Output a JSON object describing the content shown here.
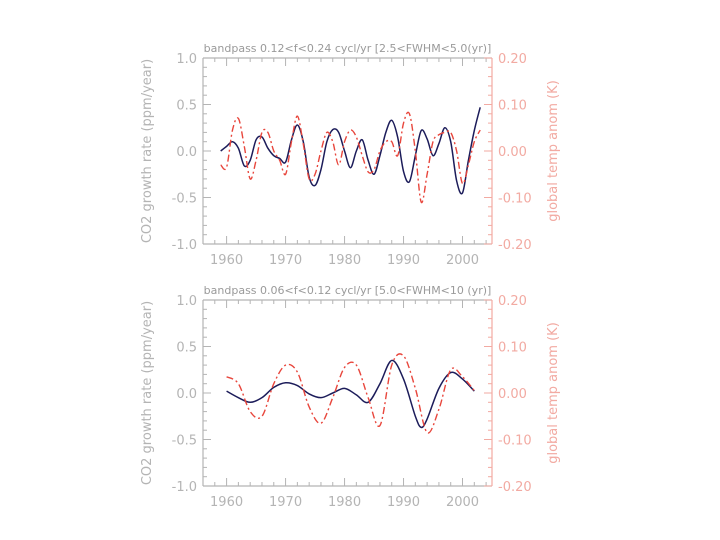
{
  "colors": {
    "axis": "#b4b4b4",
    "co2": "#1c1c5a",
    "temp": "#e8463c",
    "temp_axis": "#f2aaa2"
  },
  "chart_data": [
    {
      "type": "line",
      "title": "bandpass  0.12<f<0.24  cycl/yr   [2.5<FWHM<5.0(yr)]",
      "xlabel": "",
      "ylabel": "CO2  growth  rate  (ppm/year)",
      "y2label": "global  temp  anom  (K)",
      "xlim": [
        1956,
        2005
      ],
      "ylim": [
        -1.0,
        1.0
      ],
      "y2lim": [
        -0.2,
        0.2
      ],
      "x_ticks": [
        "1960",
        "1970",
        "1980",
        "1990",
        "2000"
      ],
      "y_ticks": [
        "1.0",
        "0.5",
        "0.0",
        "-0.5",
        "-1.0"
      ],
      "y2_ticks": [
        "0.20",
        "0.10",
        "0.00",
        "-0.10",
        "-0.20"
      ],
      "grid": false,
      "series": [
        {
          "axis": "left",
          "style": "solid",
          "x": [
            1959,
            1960,
            1961,
            1962,
            1963,
            1964,
            1965,
            1966,
            1967,
            1968,
            1969,
            1970,
            1971,
            1972,
            1973,
            1974,
            1975,
            1976,
            1977,
            1978,
            1979,
            1980,
            1981,
            1982,
            1983,
            1984,
            1985,
            1986,
            1987,
            1988,
            1989,
            1990,
            1991,
            1992,
            1993,
            1994,
            1995,
            1996,
            1997,
            1998,
            1999,
            2000,
            2001,
            2002,
            2003
          ],
          "values": [
            0.0,
            0.05,
            0.1,
            0.03,
            -0.16,
            -0.1,
            0.12,
            0.15,
            0.03,
            -0.05,
            -0.08,
            -0.12,
            0.12,
            0.28,
            0.1,
            -0.28,
            -0.37,
            -0.2,
            0.1,
            0.23,
            0.2,
            0.0,
            -0.18,
            0.0,
            0.12,
            -0.1,
            -0.25,
            -0.05,
            0.2,
            0.33,
            0.15,
            -0.22,
            -0.33,
            -0.05,
            0.22,
            0.13,
            -0.05,
            0.08,
            0.25,
            0.1,
            -0.32,
            -0.45,
            -0.1,
            0.22,
            0.47
          ]
        },
        {
          "axis": "right",
          "style": "dash-dot",
          "x": [
            1959,
            1960,
            1961,
            1962,
            1963,
            1964,
            1965,
            1966,
            1967,
            1968,
            1969,
            1970,
            1971,
            1972,
            1973,
            1974,
            1975,
            1976,
            1977,
            1978,
            1979,
            1980,
            1981,
            1982,
            1983,
            1984,
            1985,
            1986,
            1987,
            1988,
            1989,
            1990,
            1991,
            1992,
            1993,
            1994,
            1995,
            1996,
            1997,
            1998,
            1999,
            2000,
            2001,
            2002,
            2003
          ],
          "values": [
            -0.03,
            -0.035,
            0.045,
            0.07,
            0.01,
            -0.06,
            -0.02,
            0.04,
            0.04,
            0.0,
            -0.02,
            -0.05,
            0.02,
            0.075,
            0.015,
            -0.06,
            -0.05,
            0.0,
            0.04,
            0.02,
            -0.03,
            0.02,
            0.045,
            0.03,
            -0.01,
            -0.045,
            -0.04,
            0.0,
            0.02,
            0.02,
            -0.01,
            0.06,
            0.08,
            0.0,
            -0.11,
            -0.05,
            0.02,
            0.035,
            0.04,
            0.04,
            0.0,
            -0.07,
            -0.03,
            0.02,
            0.045
          ]
        }
      ]
    },
    {
      "type": "line",
      "title": "bandpass  0.06<f<0.12  cycl/yr   [5.0<FWHM<10  (yr)]",
      "xlabel": "",
      "ylabel": "CO2  growth  rate  (ppm/year)",
      "y2label": "global  temp  anom  (K)",
      "xlim": [
        1956,
        2005
      ],
      "ylim": [
        -1.0,
        1.0
      ],
      "y2lim": [
        -0.2,
        0.2
      ],
      "x_ticks": [
        "1960",
        "1970",
        "1980",
        "1990",
        "2000"
      ],
      "y_ticks": [
        "1.0",
        "0.5",
        "0.0",
        "-0.5",
        "-1.0"
      ],
      "y2_ticks": [
        "0.20",
        "0.10",
        "0.00",
        "-0.10",
        "-0.20"
      ],
      "grid": false,
      "series": [
        {
          "axis": "left",
          "style": "solid",
          "x": [
            1960,
            1962,
            1964,
            1966,
            1968,
            1970,
            1972,
            1974,
            1976,
            1978,
            1980,
            1982,
            1984,
            1986,
            1988,
            1990,
            1992,
            1993,
            1994,
            1996,
            1998,
            2000,
            2002
          ],
          "values": [
            0.02,
            -0.05,
            -0.1,
            -0.05,
            0.06,
            0.11,
            0.08,
            -0.01,
            -0.05,
            0.0,
            0.05,
            -0.02,
            -0.1,
            0.1,
            0.35,
            0.15,
            -0.25,
            -0.37,
            -0.28,
            0.05,
            0.22,
            0.15,
            0.02
          ]
        },
        {
          "axis": "right",
          "style": "dash-dot",
          "x": [
            1960,
            1962,
            1964,
            1966,
            1968,
            1970,
            1972,
            1974,
            1976,
            1978,
            1980,
            1982,
            1984,
            1986,
            1988,
            1990,
            1992,
            1994,
            1996,
            1998,
            2000,
            2002
          ],
          "values": [
            0.035,
            0.02,
            -0.04,
            -0.05,
            0.02,
            0.06,
            0.045,
            -0.03,
            -0.065,
            -0.01,
            0.055,
            0.06,
            -0.01,
            -0.07,
            0.06,
            0.08,
            0.01,
            -0.085,
            -0.035,
            0.05,
            0.035,
            0.005
          ]
        }
      ]
    }
  ]
}
